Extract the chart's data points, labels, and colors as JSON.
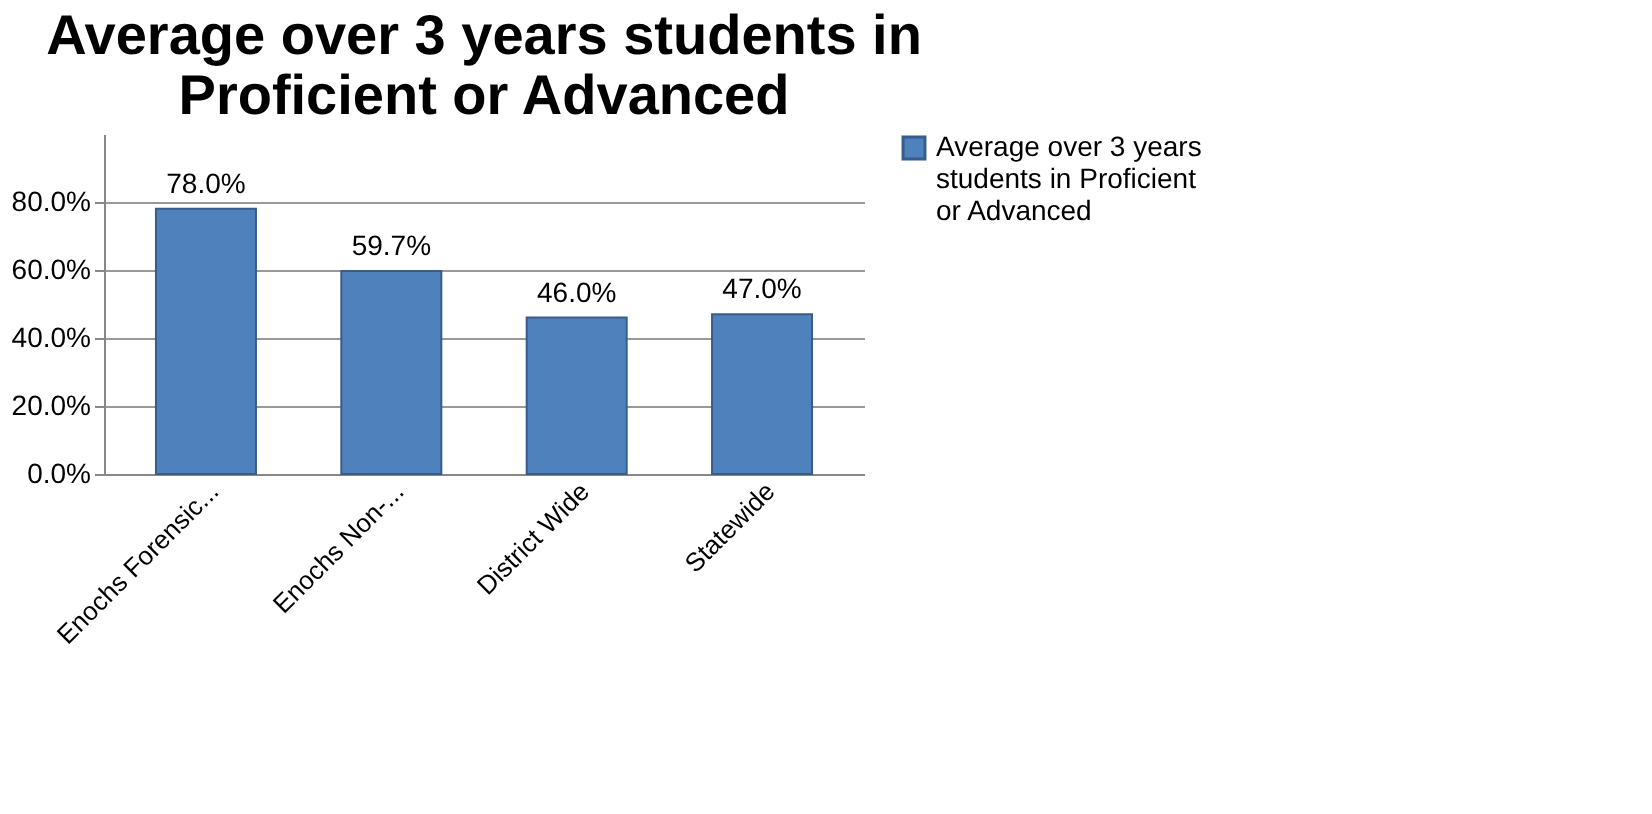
{
  "chart_data": {
    "type": "bar",
    "title": [
      "Average over 3 years students in",
      "Proficient or Advanced"
    ],
    "categories": [
      "Enochs Forensic...",
      "Enochs Non-...",
      "District Wide",
      "Statewide"
    ],
    "series": [
      {
        "name": "Average over 3 years students in Proficient or Advanced",
        "color": "#4f81bd",
        "values": [
          78.0,
          59.7,
          46.0,
          47.0
        ],
        "value_labels": [
          "78.0%",
          "59.7%",
          "46.0%",
          "47.0%"
        ]
      }
    ],
    "ylim": [
      0,
      100
    ],
    "yticks": [
      {
        "value": 0,
        "label": "0.0%"
      },
      {
        "value": 20,
        "label": "20.0%"
      },
      {
        "value": 40,
        "label": "40.0%"
      },
      {
        "value": 60,
        "label": "60.0%"
      },
      {
        "value": 80,
        "label": "80.0%"
      }
    ],
    "grid": "y",
    "legend": "right"
  }
}
